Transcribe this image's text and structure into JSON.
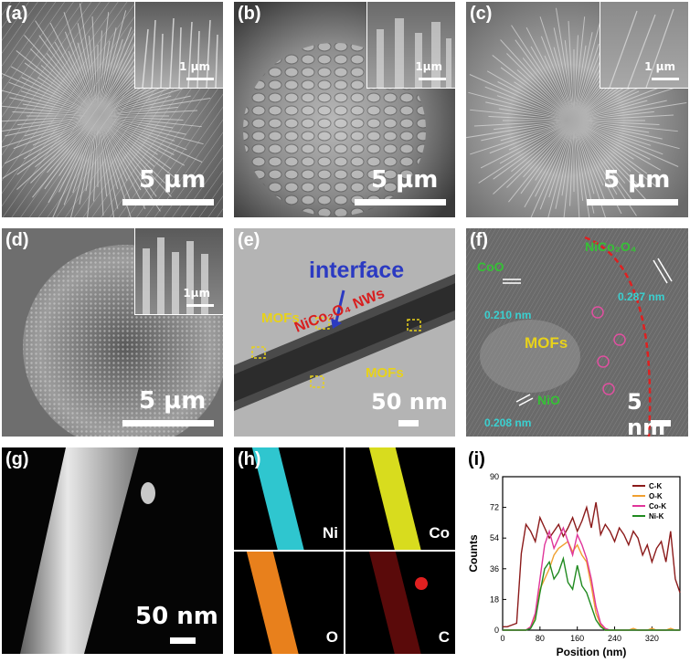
{
  "panels": {
    "a": {
      "label": "(a)",
      "scale": "5 µm",
      "inset_scale": "1 µm"
    },
    "b": {
      "label": "(b)",
      "scale": "5 µm",
      "inset_scale": "1µm"
    },
    "c": {
      "label": "(c)",
      "scale": "5 µm",
      "inset_scale": "1 µm"
    },
    "d": {
      "label": "(d)",
      "scale": "5 µm",
      "inset_scale": "1µm"
    },
    "e": {
      "label": "(e)",
      "scale": "50 nm",
      "interface": "interface",
      "mofs": "MOFs",
      "nws": "NiCo₂O₄ NWs"
    },
    "f": {
      "label": "(f)",
      "scale": "5 nm",
      "nico": "NiCo₂O₄",
      "coo": "CoO",
      "d_nico": "0.287 nm",
      "d_coo": "0.210 nm",
      "mofs": "MOFs",
      "nio": "NiO",
      "d_nio": "0.208 nm"
    },
    "g": {
      "label": "(g)",
      "scale": "50 nm"
    },
    "h": {
      "label": "(h)",
      "maps": [
        {
          "element": "Ni",
          "color": "#2fc6cf"
        },
        {
          "element": "Co",
          "color": "#d8dc1e"
        },
        {
          "element": "O",
          "color": "#e8801c"
        },
        {
          "element": "C",
          "color": "#b01010"
        }
      ]
    }
  },
  "chart_data": {
    "type": "line",
    "panel_label": "(i)",
    "xlabel": "Position (nm)",
    "ylabel": "Counts",
    "xlim": [
      0,
      380
    ],
    "ylim": [
      0,
      90
    ],
    "xticks": [
      0,
      80,
      160,
      240,
      320
    ],
    "yticks": [
      0,
      18,
      36,
      54,
      72,
      90
    ],
    "legend_position": "top-right",
    "x": [
      0,
      10,
      20,
      30,
      40,
      50,
      60,
      70,
      80,
      90,
      100,
      110,
      120,
      130,
      140,
      150,
      160,
      170,
      180,
      190,
      200,
      210,
      220,
      230,
      240,
      250,
      260,
      270,
      280,
      290,
      300,
      310,
      320,
      330,
      340,
      350,
      360,
      370,
      380
    ],
    "series": [
      {
        "name": "C-K",
        "color": "#8b1a1a",
        "values": [
          2,
          2,
          3,
          4,
          45,
          62,
          58,
          52,
          66,
          60,
          54,
          58,
          62,
          55,
          60,
          66,
          58,
          64,
          72,
          60,
          75,
          56,
          62,
          58,
          52,
          60,
          56,
          50,
          58,
          54,
          44,
          50,
          40,
          48,
          52,
          40,
          58,
          30,
          22
        ]
      },
      {
        "name": "O-K",
        "color": "#f0a030",
        "values": [
          0,
          0,
          0,
          0,
          0,
          0,
          2,
          8,
          24,
          30,
          36,
          44,
          48,
          50,
          52,
          46,
          50,
          44,
          40,
          26,
          10,
          3,
          0,
          0,
          0,
          0,
          0,
          0,
          1,
          0,
          0,
          0,
          1,
          0,
          0,
          0,
          1,
          0,
          0
        ]
      },
      {
        "name": "Co-K",
        "color": "#e0359a",
        "values": [
          0,
          0,
          0,
          0,
          0,
          0,
          2,
          10,
          30,
          50,
          58,
          48,
          54,
          60,
          52,
          44,
          56,
          50,
          42,
          30,
          14,
          4,
          1,
          0,
          0,
          0,
          0,
          0,
          0,
          0,
          0,
          0,
          0,
          0,
          0,
          0,
          0,
          0,
          0
        ]
      },
      {
        "name": "Ni-K",
        "color": "#208a20",
        "values": [
          0,
          0,
          0,
          0,
          0,
          0,
          1,
          6,
          22,
          36,
          40,
          30,
          34,
          42,
          28,
          24,
          38,
          26,
          22,
          14,
          6,
          2,
          0,
          0,
          0,
          0,
          0,
          0,
          0,
          0,
          0,
          0,
          0,
          0,
          0,
          0,
          0,
          0,
          0
        ]
      }
    ]
  }
}
